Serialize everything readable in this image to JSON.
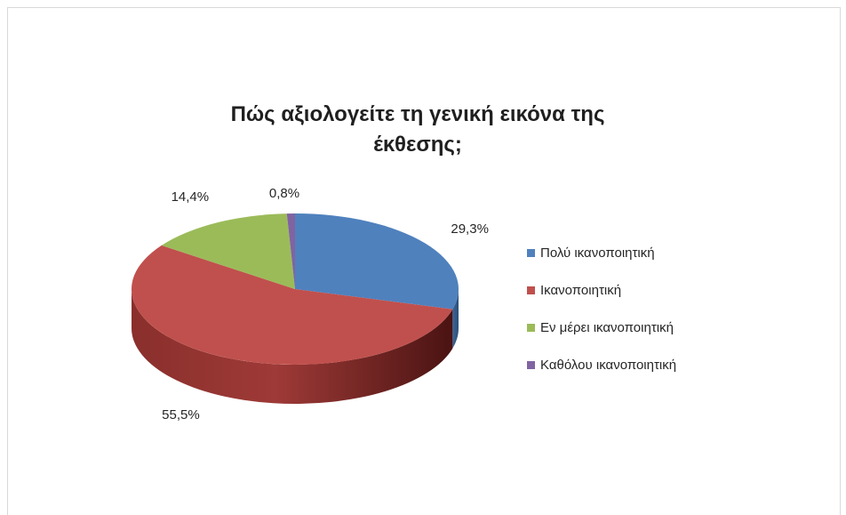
{
  "chart_data": {
    "type": "pie",
    "title_lines": [
      "Πώς αξιολογείτε τη γενική εικόνα της",
      "έκθεσης;"
    ],
    "categories": [
      "Πολύ ικανοποιητική",
      "Ικανοποιητική",
      "Εν μέρει ικανοποιητική",
      "Καθόλου ικανοποιητική"
    ],
    "values": [
      29.3,
      55.5,
      14.4,
      0.8
    ],
    "data_labels": [
      "29,3%",
      "55,5%",
      "14,4%",
      "0,8%"
    ],
    "colors": [
      "#4f81bd",
      "#c0504d",
      "#9bbb59",
      "#8064a2"
    ],
    "legend_position": "right",
    "style": "3d"
  }
}
